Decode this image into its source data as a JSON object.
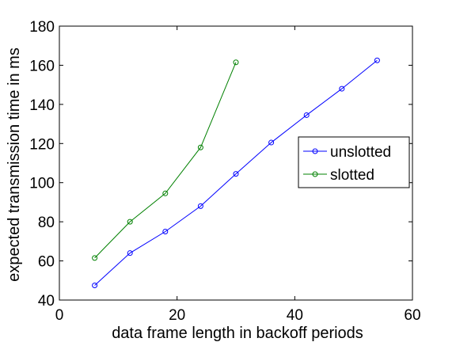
{
  "chart_data": {
    "type": "line",
    "title": "",
    "xlabel": "data frame length in backoff periods",
    "ylabel": "expected transmission time in ms",
    "xlim": [
      0,
      60
    ],
    "ylim": [
      40,
      180
    ],
    "xticks": [
      0,
      20,
      40,
      60
    ],
    "yticks": [
      40,
      60,
      80,
      100,
      120,
      140,
      160,
      180
    ],
    "grid": false,
    "legend_position": "right",
    "series": [
      {
        "name": "unslotted",
        "color": "#0000ff",
        "marker": "circle",
        "x": [
          6,
          12,
          18,
          24,
          30,
          36,
          42,
          48,
          54
        ],
        "y": [
          47.5,
          64,
          75,
          88,
          104.5,
          120.5,
          134.5,
          148,
          162.5
        ]
      },
      {
        "name": "slotted",
        "color": "#008000",
        "marker": "circle",
        "x": [
          6,
          12,
          18,
          24,
          30
        ],
        "y": [
          61.5,
          80,
          94.5,
          118,
          161.5
        ]
      }
    ]
  }
}
